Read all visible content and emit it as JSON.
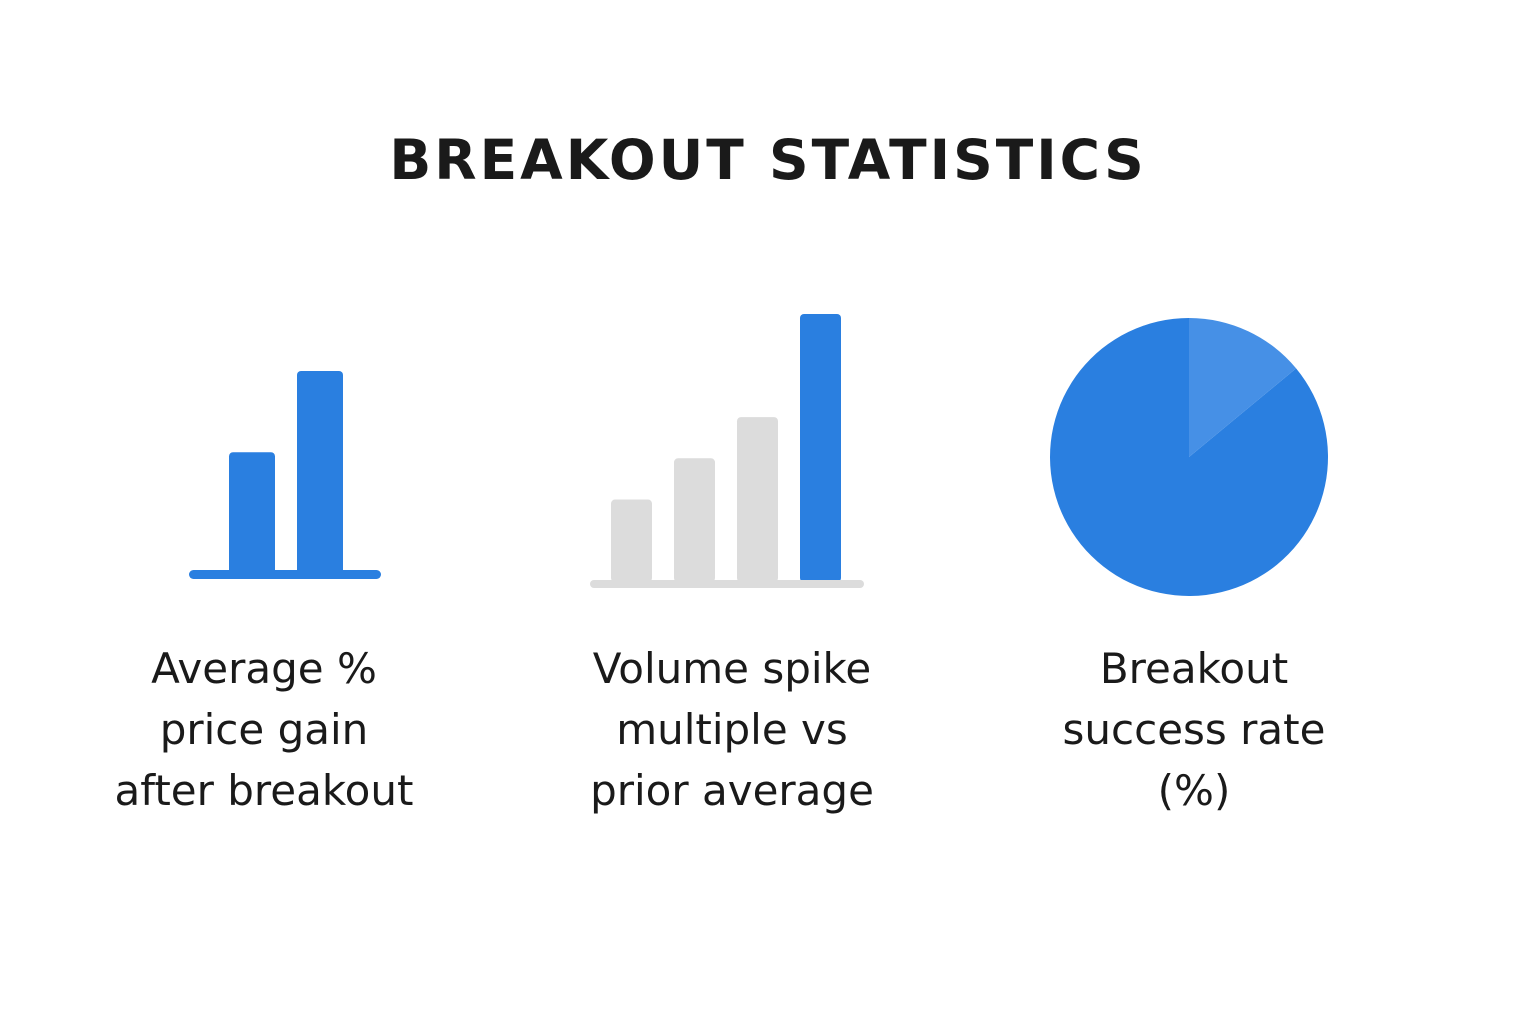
{
  "title": "BREAKOUT STATISTICS",
  "colors": {
    "accent": "#2a7fe0",
    "accent_light": "#4690e6",
    "muted": "#dcdcdc",
    "text": "#1a1a1a"
  },
  "chart_data": [
    {
      "type": "bar",
      "icon": "two-bar-chart-icon",
      "values": [
        3,
        5
      ],
      "highlight": [
        true,
        true
      ],
      "caption_lines": [
        "Average %",
        "price gain",
        "after breakout"
      ]
    },
    {
      "type": "bar",
      "icon": "rising-bars-chart-icon",
      "values": [
        2,
        3,
        4,
        6.5
      ],
      "highlight": [
        false,
        false,
        false,
        true
      ],
      "caption_lines": [
        "Volume spike",
        "multiple vs",
        "prior average"
      ]
    },
    {
      "type": "pie",
      "icon": "pie-chart-icon",
      "slices": [
        0.86,
        0.14
      ],
      "caption_lines": [
        "Breakout",
        "success rate",
        "(%)"
      ]
    }
  ]
}
